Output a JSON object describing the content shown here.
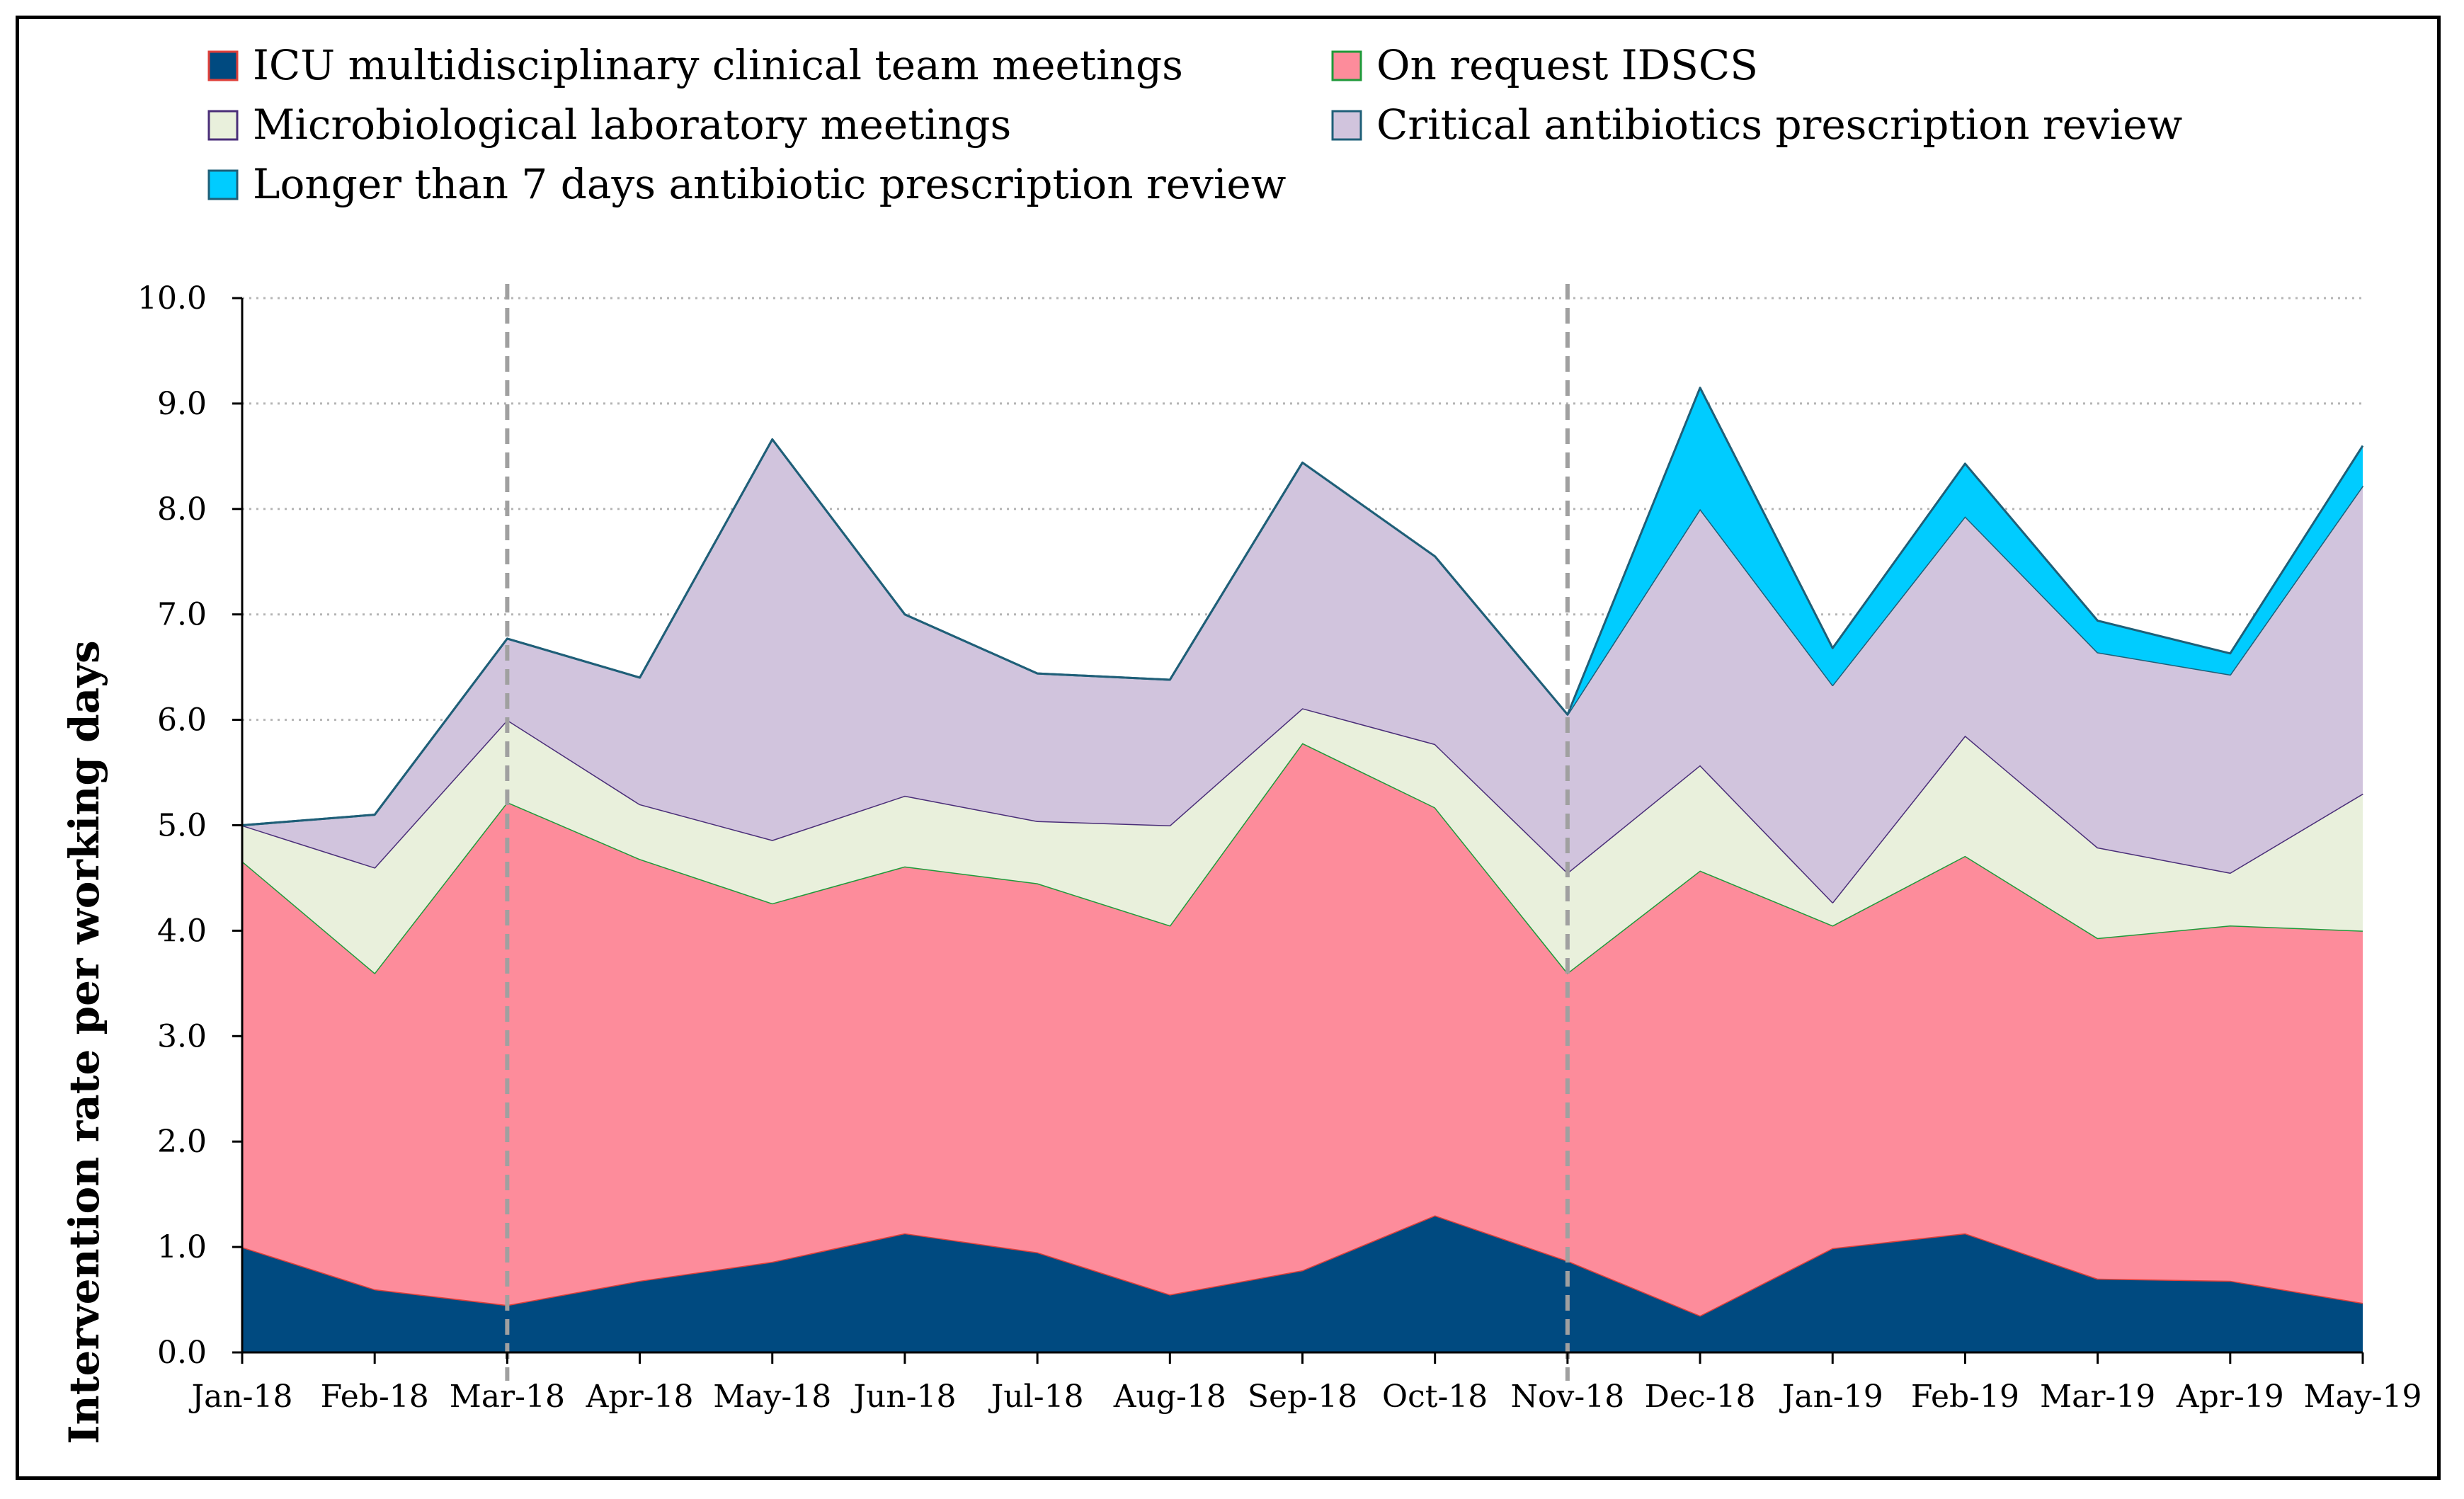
{
  "chart_data": {
    "type": "area",
    "stacked": true,
    "categories": [
      "Jan-18",
      "Feb-18",
      "Mar-18",
      "Apr-18",
      "May-18",
      "Jun-18",
      "Jul-18",
      "Aug-18",
      "Sep-18",
      "Oct-18",
      "Nov-18",
      "Dec-18",
      "Jan-19",
      "Feb-19",
      "Mar-19",
      "Apr-19",
      "May-19"
    ],
    "series": [
      {
        "name": "ICU multidisciplinary clinical team meetings",
        "color": "#004a80",
        "line_color": "#e0403a",
        "values": [
          1.0,
          0.6,
          0.45,
          0.68,
          0.86,
          1.13,
          0.95,
          0.55,
          0.78,
          1.3,
          0.87,
          0.35,
          0.99,
          1.13,
          0.7,
          0.68,
          0.47
        ]
      },
      {
        "name": "On request IDSCS",
        "color": "#fd8c9b",
        "line_color": "#1f9a3a",
        "values": [
          3.66,
          3.0,
          4.77,
          4.0,
          3.4,
          3.48,
          3.5,
          3.5,
          5.0,
          3.87,
          2.73,
          4.22,
          3.06,
          3.58,
          3.23,
          3.37,
          3.53
        ]
      },
      {
        "name": "Microbiological laboratory meetings",
        "color": "#e9f0dc",
        "line_color": "#4a2e78",
        "values": [
          0.34,
          1.0,
          0.78,
          0.52,
          0.6,
          0.67,
          0.59,
          0.95,
          0.33,
          0.6,
          0.95,
          1.0,
          0.22,
          1.14,
          0.86,
          0.5,
          1.3
        ]
      },
      {
        "name": "Critical antibiotics prescription review",
        "color": "#d1c4dd",
        "line_color": "#1f5f78",
        "values": [
          0.0,
          0.5,
          0.77,
          1.2,
          3.8,
          1.72,
          1.4,
          1.38,
          2.33,
          1.78,
          1.5,
          2.43,
          2.06,
          2.08,
          1.85,
          1.88,
          2.92
        ]
      },
      {
        "name": "Longer than 7 days antibiotic prescription review",
        "color": "#00ccff",
        "line_color": "#1f5f78",
        "values": [
          0.0,
          0.0,
          0.0,
          0.0,
          0.0,
          0.0,
          0.0,
          0.0,
          0.0,
          0.0,
          0.0,
          1.15,
          0.35,
          0.5,
          0.3,
          0.2,
          0.38
        ]
      }
    ],
    "xlabel": "",
    "ylabel": "Intervention rate per working days",
    "ylim": [
      0,
      10
    ],
    "yticks": [
      "0.0",
      "1.0",
      "2.0",
      "3.0",
      "4.0",
      "5.0",
      "6.0",
      "7.0",
      "8.0",
      "9.0",
      "10.0"
    ],
    "grid": "dotted horizontal",
    "legend_position": "top",
    "vertical_markers": [
      "Mar-18",
      "Nov-18"
    ],
    "marker_color": "#a0a0a0"
  }
}
